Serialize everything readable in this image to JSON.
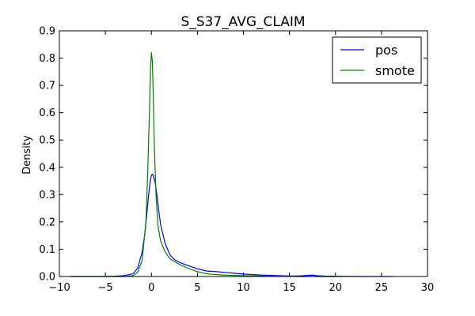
{
  "chart_data": {
    "type": "line",
    "title": "S_S37_AVG_CLAIM",
    "xlabel": "",
    "ylabel": "Density",
    "xlim": [
      -10,
      30
    ],
    "ylim": [
      0,
      0.9
    ],
    "xticks": [
      -10,
      -5,
      0,
      5,
      10,
      15,
      20,
      25,
      30
    ],
    "xtick_labels": [
      "−10",
      "−5",
      "0",
      "5",
      "10",
      "15",
      "20",
      "25",
      "30"
    ],
    "yticks": [
      0.0,
      0.1,
      0.2,
      0.3,
      0.4,
      0.5,
      0.6,
      0.7,
      0.8,
      0.9
    ],
    "ytick_labels": [
      "0.0",
      "0.1",
      "0.2",
      "0.3",
      "0.4",
      "0.5",
      "0.6",
      "0.7",
      "0.8",
      "0.9"
    ],
    "grid": false,
    "legend_position": "top-right",
    "series": [
      {
        "name": "pos",
        "color": "#0000ff",
        "x": [
          -8.8,
          -6,
          -4,
          -3,
          -2,
          -1.5,
          -1,
          -0.7,
          -0.5,
          -0.3,
          -0.1,
          0.0,
          0.1,
          0.2,
          0.4,
          0.6,
          0.8,
          1.0,
          1.5,
          2.0,
          2.5,
          3.0,
          4.0,
          5.0,
          6.0,
          7.0,
          8.0,
          9.0,
          10.0,
          12.0,
          14.0,
          15.0,
          16.0,
          17.0,
          17.5,
          18.0,
          19.0,
          20.0,
          22.0,
          24.0,
          26.2
        ],
        "y": [
          0.0,
          0.0,
          0.001,
          0.003,
          0.01,
          0.03,
          0.09,
          0.16,
          0.23,
          0.3,
          0.355,
          0.37,
          0.375,
          0.37,
          0.345,
          0.3,
          0.24,
          0.19,
          0.12,
          0.08,
          0.062,
          0.052,
          0.04,
          0.028,
          0.02,
          0.018,
          0.015,
          0.012,
          0.009,
          0.005,
          0.003,
          0.002,
          0.002,
          0.004,
          0.005,
          0.003,
          0.001,
          0.001,
          0.0,
          0.0,
          0.0
        ]
      },
      {
        "name": "smote",
        "color": "#008000",
        "x": [
          -8.8,
          -5,
          -3,
          -2,
          -1.5,
          -1.0,
          -0.6,
          -0.4,
          -0.2,
          -0.1,
          0.0,
          0.1,
          0.2,
          0.3,
          0.5,
          0.7,
          1.0,
          1.5,
          2.0,
          3.0,
          4.0,
          5.0,
          6.0,
          7.0,
          8.0,
          10.0,
          12.0,
          14.0,
          16.0,
          18.0,
          20.0
        ],
        "y": [
          0.0,
          0.0,
          0.0,
          0.003,
          0.015,
          0.06,
          0.2,
          0.38,
          0.62,
          0.76,
          0.82,
          0.79,
          0.67,
          0.5,
          0.3,
          0.19,
          0.13,
          0.09,
          0.065,
          0.045,
          0.03,
          0.018,
          0.01,
          0.007,
          0.005,
          0.003,
          0.002,
          0.001,
          0.0,
          0.0,
          0.0
        ]
      }
    ]
  }
}
